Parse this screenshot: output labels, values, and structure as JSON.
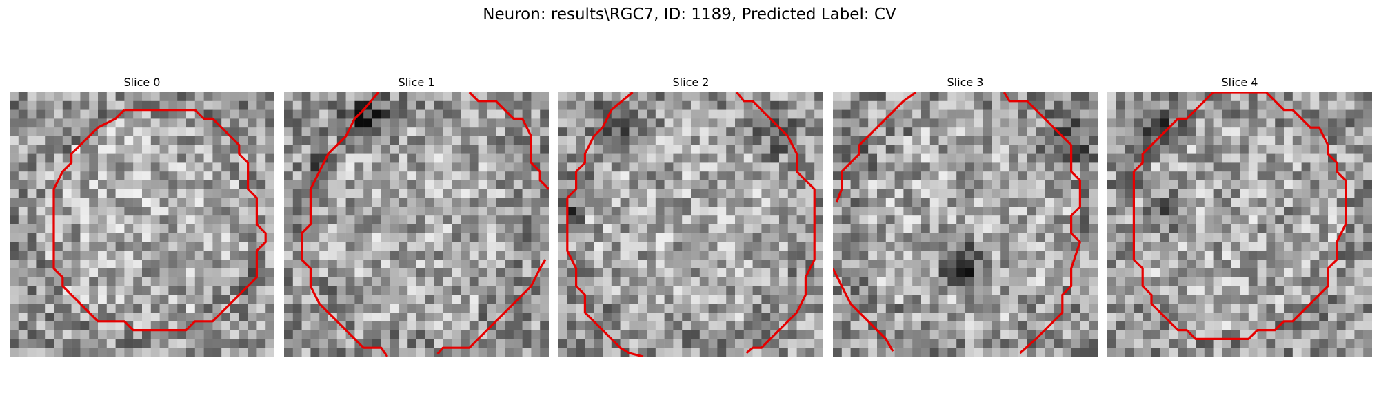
{
  "figure": {
    "title": "Neuron: results\\RGC7, ID: 1189, Predicted Label: CV",
    "contour_color": "#e60000"
  },
  "panels": [
    {
      "title": "Slice 0"
    },
    {
      "title": "Slice 1"
    },
    {
      "title": "Slice 2"
    },
    {
      "title": "Slice 3"
    },
    {
      "title": "Slice 4"
    }
  ]
}
